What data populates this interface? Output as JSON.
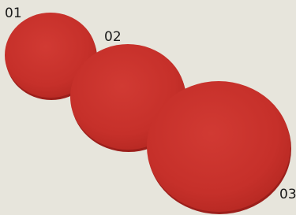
{
  "labels": [
    "01",
    "02",
    "03"
  ]
}
